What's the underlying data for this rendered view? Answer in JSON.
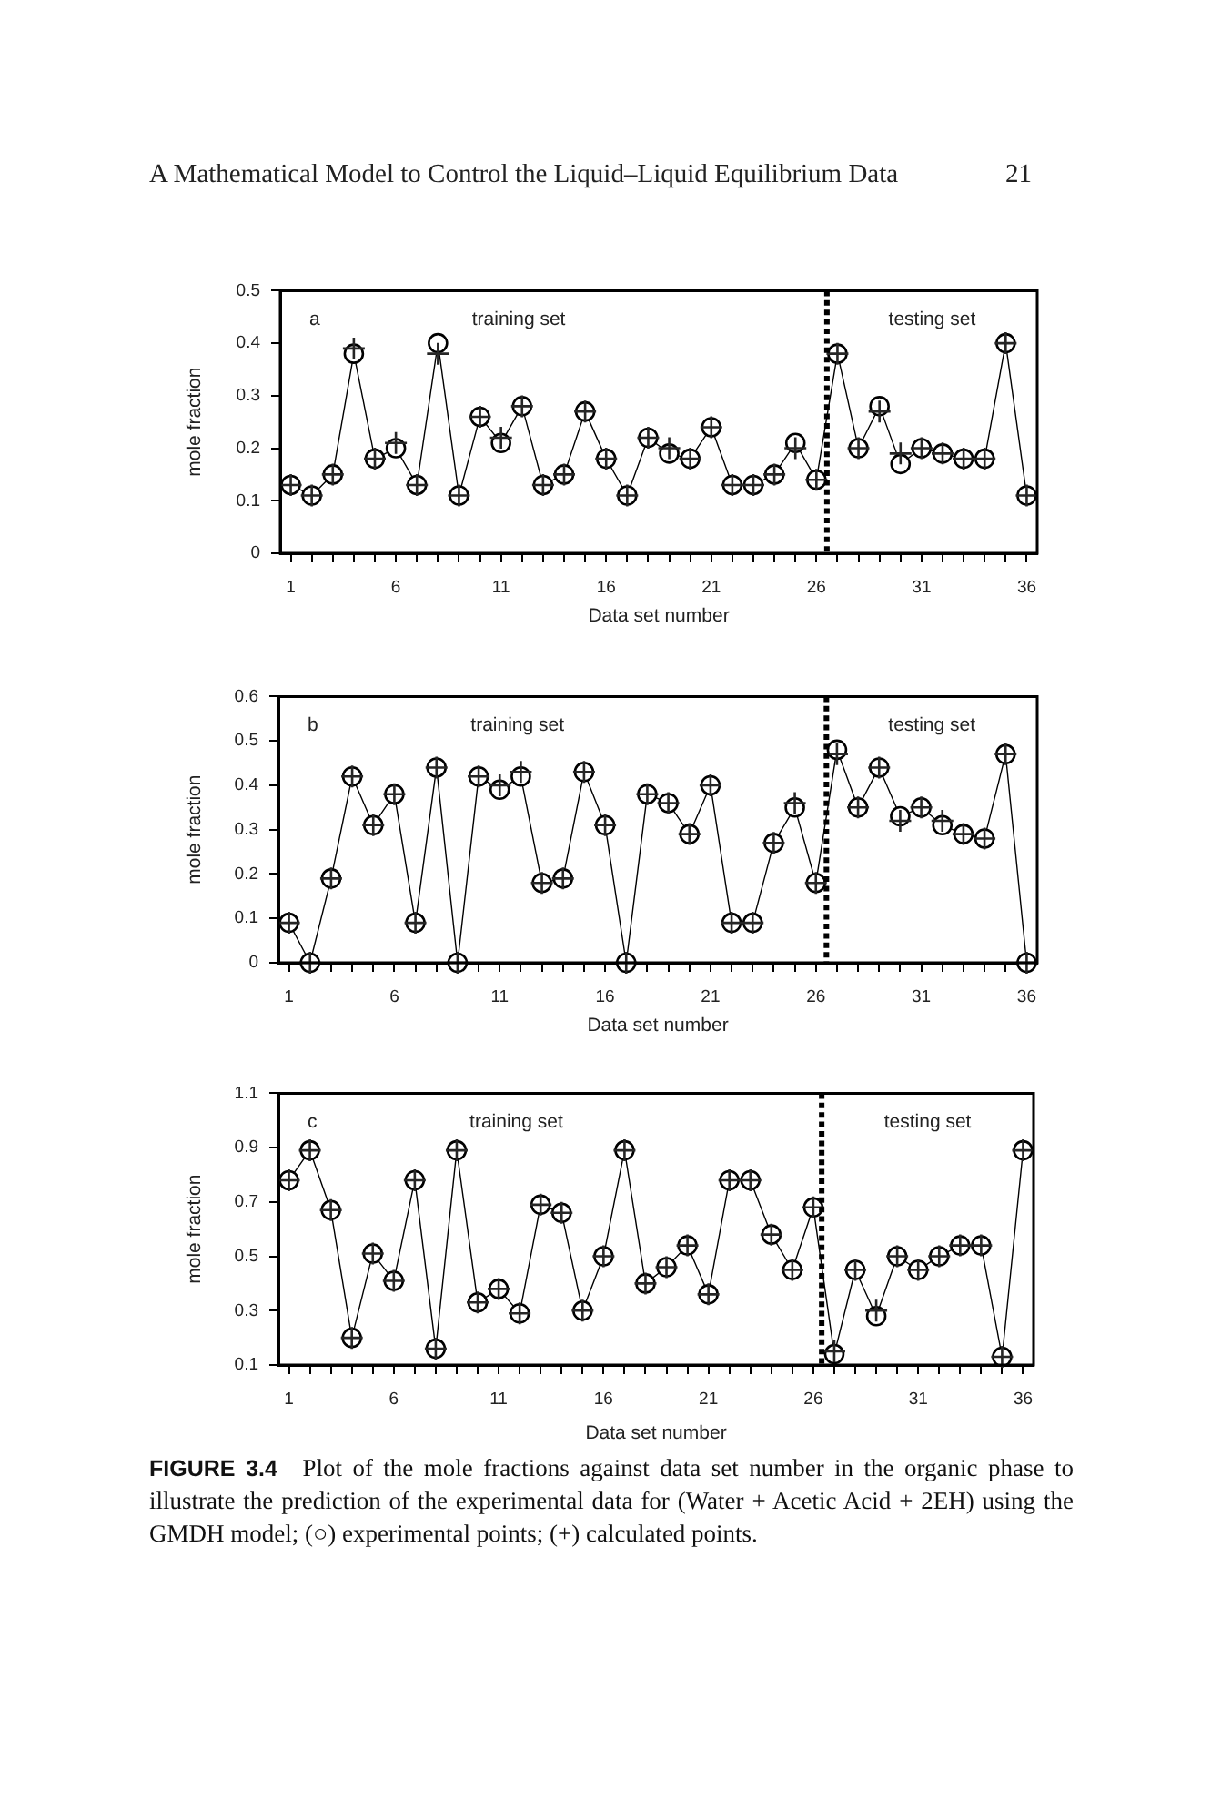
{
  "chart_data": [
    {
      "type": "line",
      "title": "a",
      "xlabel": "Data set number",
      "ylabel": "mole fraction",
      "xlim": [
        0.5,
        36.5
      ],
      "xticks": [
        1,
        {
          "value": 2,
          "label": null
        },
        {
          "value": 3,
          "label": null
        },
        {
          "value": 4,
          "label": null
        },
        {
          "value": 5,
          "label": null
        },
        6,
        {
          "value": 7,
          "label": null
        },
        {
          "value": 8,
          "label": null
        },
        {
          "value": 9,
          "label": null
        },
        {
          "value": 10,
          "label": null
        },
        11,
        {
          "value": 12,
          "label": null
        },
        {
          "value": 13,
          "label": null
        },
        {
          "value": 14,
          "label": null
        },
        {
          "value": 15,
          "label": null
        },
        16,
        {
          "value": 17,
          "label": null
        },
        {
          "value": 18,
          "label": null
        },
        {
          "value": 19,
          "label": null
        },
        {
          "value": 20,
          "label": null
        },
        21,
        {
          "value": 22,
          "label": null
        },
        {
          "value": 23,
          "label": null
        },
        {
          "value": 24,
          "label": null
        },
        {
          "value": 25,
          "label": null
        },
        26,
        {
          "value": 27,
          "label": null
        },
        {
          "value": 28,
          "label": null
        },
        {
          "value": 29,
          "label": null
        },
        {
          "value": 30,
          "label": null
        },
        31,
        {
          "value": 32,
          "label": null
        },
        {
          "value": 33,
          "label": null
        },
        {
          "value": 34,
          "label": null
        },
        {
          "value": 35,
          "label": null
        },
        36
      ],
      "ylim": [
        0,
        0.5
      ],
      "yticks": [
        0,
        0.1,
        0.2,
        0.3,
        0.4,
        0.5
      ],
      "x": [
        1,
        2,
        3,
        4,
        5,
        6,
        7,
        8,
        9,
        10,
        11,
        12,
        13,
        14,
        15,
        16,
        17,
        18,
        19,
        20,
        21,
        22,
        23,
        24,
        25,
        26,
        27,
        28,
        29,
        30,
        31,
        32,
        33,
        34,
        35,
        36
      ],
      "series": [
        {
          "type": "line",
          "color": "#000000",
          "marker": "circle",
          "line_style": "solid",
          "values": [
            0.13,
            0.11,
            0.15,
            0.38,
            0.18,
            0.2,
            0.13,
            0.4,
            0.11,
            0.26,
            0.21,
            0.28,
            0.13,
            0.15,
            0.27,
            0.18,
            0.11,
            0.22,
            0.19,
            0.18,
            0.24,
            0.13,
            0.13,
            0.15,
            0.21,
            0.14,
            0.38,
            0.2,
            0.28,
            0.17,
            0.2,
            0.19,
            0.18,
            0.18,
            0.4,
            0.11
          ]
        },
        {
          "type": "scatter",
          "color": "#262626",
          "marker": "cross",
          "values": [
            0.13,
            0.11,
            0.15,
            0.39,
            0.18,
            0.21,
            0.13,
            0.38,
            0.11,
            0.26,
            0.22,
            0.28,
            0.13,
            0.15,
            0.27,
            0.18,
            0.11,
            0.22,
            0.2,
            0.18,
            0.24,
            0.13,
            0.13,
            0.15,
            0.2,
            0.14,
            0.38,
            0.2,
            0.27,
            0.19,
            0.2,
            0.19,
            0.18,
            0.18,
            0.4,
            0.11
          ]
        }
      ],
      "ref_lines": [
        {
          "axis": "x",
          "value": 26.5,
          "line_style": "dashed",
          "color": "#000000"
        }
      ],
      "annotations": [
        "training set",
        "testing set",
        "A Mathematical Model to Control the Liquid–Liquid Equilibrium Data",
        "21"
      ]
    },
    {
      "type": "line",
      "title": "b",
      "xlabel": "Data set number",
      "ylabel": "mole fraction",
      "xlim": [
        0.5,
        36.5
      ],
      "xticks": [
        1,
        {
          "value": 2,
          "label": null
        },
        {
          "value": 3,
          "label": null
        },
        {
          "value": 4,
          "label": null
        },
        {
          "value": 5,
          "label": null
        },
        6,
        {
          "value": 7,
          "label": null
        },
        {
          "value": 8,
          "label": null
        },
        {
          "value": 9,
          "label": null
        },
        {
          "value": 10,
          "label": null
        },
        11,
        {
          "value": 12,
          "label": null
        },
        {
          "value": 13,
          "label": null
        },
        {
          "value": 14,
          "label": null
        },
        {
          "value": 15,
          "label": null
        },
        16,
        {
          "value": 17,
          "label": null
        },
        {
          "value": 18,
          "label": null
        },
        {
          "value": 19,
          "label": null
        },
        {
          "value": 20,
          "label": null
        },
        21,
        {
          "value": 22,
          "label": null
        },
        {
          "value": 23,
          "label": null
        },
        {
          "value": 24,
          "label": null
        },
        {
          "value": 25,
          "label": null
        },
        26,
        {
          "value": 27,
          "label": null
        },
        {
          "value": 28,
          "label": null
        },
        {
          "value": 29,
          "label": null
        },
        {
          "value": 30,
          "label": null
        },
        31,
        {
          "value": 32,
          "label": null
        },
        {
          "value": 33,
          "label": null
        },
        {
          "value": 34,
          "label": null
        },
        {
          "value": 35,
          "label": null
        },
        36
      ],
      "ylim": [
        0,
        0.6
      ],
      "yticks": [
        0,
        0.1,
        0.2,
        0.3,
        0.4,
        0.5,
        0.6
      ],
      "x": [
        1,
        2,
        3,
        4,
        5,
        6,
        7,
        8,
        9,
        10,
        11,
        12,
        13,
        14,
        15,
        16,
        17,
        18,
        19,
        20,
        21,
        22,
        23,
        24,
        25,
        26,
        27,
        28,
        29,
        30,
        31,
        32,
        33,
        34,
        35,
        36
      ],
      "series": [
        {
          "type": "line",
          "color": "#000000",
          "marker": "circle",
          "line_style": "solid",
          "values": [
            0.09,
            0,
            0.19,
            0.42,
            0.31,
            0.38,
            0.09,
            0.44,
            0,
            0.42,
            0.39,
            0.42,
            0.18,
            0.19,
            0.43,
            0.31,
            0,
            0.38,
            0.36,
            0.29,
            0.4,
            0.09,
            0.09,
            0.27,
            0.35,
            0.18,
            0.48,
            0.35,
            0.44,
            0.33,
            0.35,
            0.31,
            0.29,
            0.28,
            0.47,
            0
          ]
        },
        {
          "type": "scatter",
          "color": "#262626",
          "marker": "cross",
          "values": [
            0.09,
            0,
            0.19,
            0.42,
            0.31,
            0.38,
            0.09,
            0.44,
            0,
            0.42,
            0.4,
            0.43,
            0.18,
            0.19,
            0.43,
            0.31,
            0,
            0.38,
            0.36,
            0.29,
            0.4,
            0.09,
            0.09,
            0.27,
            0.36,
            0.18,
            0.47,
            0.35,
            0.44,
            0.32,
            0.35,
            0.32,
            0.29,
            0.28,
            0.47,
            0
          ]
        }
      ],
      "ref_lines": [
        {
          "axis": "x",
          "value": 26.5,
          "line_style": "dashed",
          "color": "#000000"
        }
      ],
      "annotations": [
        "training set",
        "testing set"
      ]
    },
    {
      "type": "line",
      "title": "c",
      "xlabel": "Data set number",
      "ylabel": "mole fraction",
      "xlim": [
        0.5,
        36.5
      ],
      "xticks": [
        1,
        {
          "value": 2,
          "label": null
        },
        {
          "value": 3,
          "label": null
        },
        {
          "value": 4,
          "label": null
        },
        {
          "value": 5,
          "label": null
        },
        6,
        {
          "value": 7,
          "label": null
        },
        {
          "value": 8,
          "label": null
        },
        {
          "value": 9,
          "label": null
        },
        {
          "value": 10,
          "label": null
        },
        11,
        {
          "value": 12,
          "label": null
        },
        {
          "value": 13,
          "label": null
        },
        {
          "value": 14,
          "label": null
        },
        {
          "value": 15,
          "label": null
        },
        16,
        {
          "value": 17,
          "label": null
        },
        {
          "value": 18,
          "label": null
        },
        {
          "value": 19,
          "label": null
        },
        {
          "value": 20,
          "label": null
        },
        21,
        {
          "value": 22,
          "label": null
        },
        {
          "value": 23,
          "label": null
        },
        {
          "value": 24,
          "label": null
        },
        {
          "value": 25,
          "label": null
        },
        26,
        {
          "value": 27,
          "label": null
        },
        {
          "value": 28,
          "label": null
        },
        {
          "value": 29,
          "label": null
        },
        {
          "value": 30,
          "label": null
        },
        31,
        {
          "value": 32,
          "label": null
        },
        {
          "value": 33,
          "label": null
        },
        {
          "value": 34,
          "label": null
        },
        {
          "value": 35,
          "label": null
        },
        36
      ],
      "ylim": [
        0.1,
        1.1
      ],
      "yticks": [
        0.1,
        0.3,
        0.5,
        0.7,
        0.9,
        1.1
      ],
      "x": [
        1,
        2,
        3,
        4,
        5,
        6,
        7,
        8,
        9,
        10,
        11,
        12,
        13,
        14,
        15,
        16,
        17,
        18,
        19,
        20,
        21,
        22,
        23,
        24,
        25,
        26,
        27,
        28,
        29,
        30,
        31,
        32,
        33,
        34,
        35,
        36
      ],
      "series": [
        {
          "type": "line",
          "color": "#000000",
          "marker": "circle",
          "line_style": "solid",
          "values": [
            0.78,
            0.89,
            0.67,
            0.2,
            0.51,
            0.41,
            0.78,
            0.16,
            0.89,
            0.33,
            0.38,
            0.29,
            0.69,
            0.66,
            0.3,
            0.5,
            0.89,
            0.4,
            0.46,
            0.54,
            0.36,
            0.78,
            0.78,
            0.58,
            0.45,
            0.68,
            0.14,
            0.45,
            0.28,
            0.5,
            0.45,
            0.5,
            0.54,
            0.54,
            0.13,
            0.89
          ]
        },
        {
          "type": "scatter",
          "color": "#262626",
          "marker": "cross",
          "values": [
            0.78,
            0.89,
            0.67,
            0.2,
            0.51,
            0.41,
            0.78,
            0.16,
            0.89,
            0.33,
            0.38,
            0.29,
            0.69,
            0.66,
            0.3,
            0.5,
            0.89,
            0.4,
            0.46,
            0.54,
            0.36,
            0.78,
            0.78,
            0.58,
            0.45,
            0.68,
            0.15,
            0.45,
            0.3,
            0.5,
            0.45,
            0.5,
            0.54,
            0.54,
            0.13,
            0.89
          ]
        }
      ],
      "ref_lines": [
        {
          "axis": "x",
          "value": 26.4,
          "line_style": "dashed",
          "color": "#000000"
        }
      ],
      "annotations": [
        "training set",
        "testing set",
        "FIGURE 3.4",
        "Plot of the mole fractions against data set number in the organic phase to illustrate the prediction of the experimental data for (Water + Acetic Acid + 2EH) using the GMDH model; (○) experimental points; (+) calculated points."
      ]
    }
  ]
}
